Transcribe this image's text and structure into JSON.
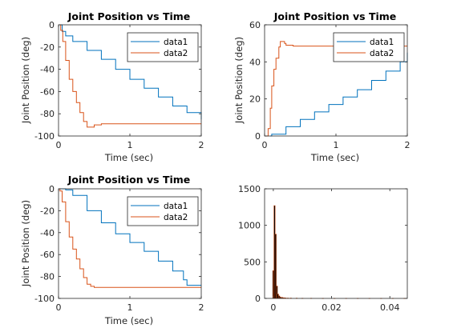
{
  "chart_data": [
    {
      "type": "line",
      "title": "Joint Position vs Time",
      "xlabel": "Time (sec)",
      "ylabel": "Joint Position (deg)",
      "xlim": [
        0,
        2
      ],
      "ylim": [
        -100,
        0
      ],
      "xticks": [
        "0",
        "1",
        "2"
      ],
      "yticks": [
        "0",
        "-20",
        "-40",
        "-60",
        "-80",
        "-100"
      ],
      "legend": "top-right",
      "series": [
        {
          "name": "data1",
          "color": "#0072BD",
          "x": [
            0,
            0.05,
            0.1,
            0.2,
            0.4,
            0.6,
            0.8,
            1.0,
            1.2,
            1.4,
            1.6,
            1.8,
            2.0
          ],
          "y": [
            0,
            -6,
            -10,
            -15,
            -23,
            -31,
            -40,
            -49,
            -57,
            -65,
            -73,
            -79,
            -85
          ]
        },
        {
          "name": "data2",
          "color": "#D95319",
          "x": [
            0,
            0.03,
            0.06,
            0.1,
            0.15,
            0.2,
            0.25,
            0.3,
            0.35,
            0.4,
            0.45,
            0.5,
            0.6,
            1.0,
            1.5,
            2.0
          ],
          "y": [
            0,
            -5,
            -15,
            -32,
            -49,
            -60,
            -70,
            -79,
            -87,
            -92,
            -92,
            -90,
            -89,
            -89,
            -89,
            -89
          ]
        }
      ]
    },
    {
      "type": "line",
      "title": "Joint Position vs Time",
      "xlabel": "Time (sec)",
      "ylabel": "Joint Position (deg)",
      "xlim": [
        0,
        2
      ],
      "ylim": [
        0,
        60
      ],
      "xticks": [
        "0",
        "1",
        "2"
      ],
      "yticks": [
        "0",
        "20",
        "40",
        "60"
      ],
      "legend": "top-right",
      "series": [
        {
          "name": "data1",
          "color": "#0072BD",
          "x": [
            0.08,
            0.1,
            0.3,
            0.5,
            0.7,
            0.9,
            1.1,
            1.3,
            1.5,
            1.7,
            1.9,
            2.0
          ],
          "y": [
            0,
            1,
            5,
            9,
            13,
            17,
            21,
            25,
            30,
            35,
            40,
            45
          ]
        },
        {
          "name": "data2",
          "color": "#D95319",
          "x": [
            0,
            0.02,
            0.05,
            0.08,
            0.1,
            0.13,
            0.16,
            0.2,
            0.22,
            0.25,
            0.28,
            0.3,
            0.4,
            1.0,
            2.0
          ],
          "y": [
            0,
            0,
            4,
            15,
            27,
            36,
            42,
            48,
            51,
            51,
            50,
            49,
            48.5,
            48.5,
            48.5
          ]
        }
      ]
    },
    {
      "type": "line",
      "title": "Joint Position vs Time",
      "xlabel": "Time (sec)",
      "ylabel": "Joint Position (deg)",
      "xlim": [
        0,
        2
      ],
      "ylim": [
        -100,
        0
      ],
      "xticks": [
        "0",
        "1",
        "2"
      ],
      "yticks": [
        "0",
        "-20",
        "-40",
        "-60",
        "-80",
        "-100"
      ],
      "legend": "top-right",
      "series": [
        {
          "name": "data1",
          "color": "#0072BD",
          "x": [
            0,
            0.05,
            0.1,
            0.2,
            0.4,
            0.6,
            0.8,
            1.0,
            1.2,
            1.4,
            1.6,
            1.75,
            1.8,
            1.9,
            2.0
          ],
          "y": [
            0,
            0,
            -1,
            -6,
            -20,
            -31,
            -41,
            -49,
            -57,
            -66,
            -75,
            -83,
            -88,
            -88,
            -88
          ]
        },
        {
          "name": "data2",
          "color": "#D95319",
          "x": [
            0,
            0.02,
            0.05,
            0.1,
            0.15,
            0.2,
            0.25,
            0.3,
            0.35,
            0.4,
            0.45,
            0.5,
            0.6,
            1.0,
            1.5,
            2.0
          ],
          "y": [
            0,
            -2,
            -12,
            -30,
            -44,
            -55,
            -64,
            -73,
            -81,
            -87,
            -89,
            -90,
            -90,
            -90,
            -90,
            -90
          ]
        }
      ]
    },
    {
      "type": "bar",
      "title": "",
      "xlim": [
        -0.003,
        0.046
      ],
      "ylim": [
        0,
        1500
      ],
      "xticks": [
        "0",
        "0.02",
        "0.04"
      ],
      "yticks": [
        "0",
        "500",
        "1000",
        "1500"
      ],
      "bar_color": "#000000",
      "bar_edge_color": "#D95319",
      "x": [
        0.0,
        0.0004,
        0.0008,
        0.0012,
        0.0016,
        0.002,
        0.0024,
        0.003,
        0.0036,
        0.0042,
        0.005,
        0.006,
        0.008,
        0.01,
        0.013,
        0.017,
        0.021,
        0.025,
        0.029,
        0.033,
        0.037,
        0.041,
        0.045
      ],
      "values": [
        380,
        1270,
        880,
        170,
        60,
        35,
        20,
        15,
        10,
        8,
        6,
        5,
        4,
        3,
        3,
        2,
        2,
        2,
        2,
        2,
        2,
        2,
        2
      ]
    }
  ]
}
